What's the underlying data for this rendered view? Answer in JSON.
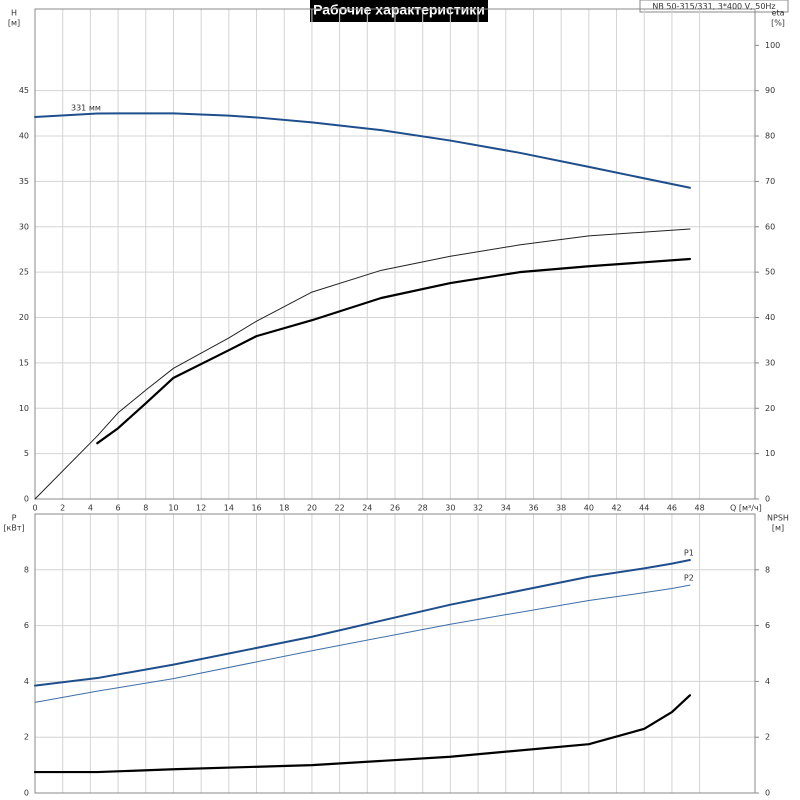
{
  "title": "Рабочие характеристики",
  "subtitle": "NB 50-315/331, 3*400 V, 50Hz",
  "chart_data": [
    {
      "type": "line",
      "ylabel": "H",
      "yunit": "[м]",
      "y2label": "eta",
      "y2unit": "[%]",
      "xlabel": "Q [м³/ч]",
      "x": [
        0,
        4.5,
        6,
        8,
        10,
        14,
        16,
        20,
        25,
        30,
        35,
        40,
        47.3
      ],
      "xlim": [
        0,
        52
      ],
      "xticks": [
        0,
        2,
        4,
        6,
        8,
        10,
        12,
        14,
        16,
        18,
        20,
        22,
        24,
        26,
        28,
        30,
        32,
        34,
        36,
        38,
        40,
        42,
        44,
        46,
        48
      ],
      "ylim": [
        0,
        54
      ],
      "yticks": [
        0,
        5,
        10,
        15,
        20,
        25,
        30,
        35,
        40,
        45
      ],
      "y2lim": [
        0,
        108
      ],
      "y2ticks": [
        0,
        10,
        20,
        30,
        40,
        50,
        60,
        70,
        80,
        90,
        100
      ],
      "grid": true,
      "series": [
        {
          "name": "331 мм",
          "label_at": "start",
          "color": "#1f4e8c",
          "linewidth": 2,
          "values": [
            42.1,
            42.48,
            42.5,
            42.5,
            42.5,
            42.25,
            42.05,
            41.5,
            40.65,
            39.5,
            38.15,
            36.6,
            34.3
          ]
        },
        {
          "color": "#222222",
          "linewidth": 1,
          "axis": "y2",
          "values": [
            0,
            13.9,
            19,
            24,
            28.8,
            35.5,
            39.2,
            45.6,
            50.4,
            53.5,
            56,
            58,
            59.5
          ]
        },
        {
          "color": "#000000",
          "linewidth": 2.2,
          "axis": "y2",
          "values": [
            null,
            12.3,
            15.6,
            21.1,
            26.7,
            32.8,
            35.9,
            39.4,
            44.3,
            47.6,
            50.0,
            51.3,
            52.9
          ]
        }
      ]
    },
    {
      "type": "line",
      "ylabel": "P",
      "yunit": "[кВт]",
      "y2label": "NPSH",
      "y2unit": "[м]",
      "x": [
        0,
        4.5,
        10,
        20,
        30,
        40,
        44,
        46,
        47.3
      ],
      "xlim": [
        0,
        52
      ],
      "xticks": [
        0,
        2,
        4,
        6,
        8,
        10,
        12,
        14,
        16,
        18,
        20,
        22,
        24,
        26,
        28,
        30,
        32,
        34,
        36,
        38,
        40,
        42,
        44,
        46,
        48
      ],
      "ylim": [
        0,
        10
      ],
      "yticks": [
        0,
        2,
        4,
        6,
        8
      ],
      "y2lim": [
        0,
        10
      ],
      "y2ticks": [
        0,
        2,
        4,
        6,
        8
      ],
      "grid": true,
      "series": [
        {
          "name": "P1",
          "label_at": "end",
          "color": "#1f4e8c",
          "linewidth": 2,
          "values": [
            3.85,
            4.12,
            4.6,
            5.6,
            6.75,
            7.75,
            8.05,
            8.22,
            8.35
          ]
        },
        {
          "name": "P2",
          "label_at": "end",
          "color": "#3d6fa8",
          "linewidth": 1,
          "values": [
            3.25,
            3.65,
            4.1,
            5.1,
            6.05,
            6.9,
            7.18,
            7.33,
            7.45
          ]
        },
        {
          "color": "#000000",
          "linewidth": 2.2,
          "axis": "y2",
          "values": [
            0.75,
            0.75,
            0.85,
            1.0,
            1.3,
            1.75,
            2.3,
            2.9,
            3.5
          ]
        }
      ]
    }
  ]
}
